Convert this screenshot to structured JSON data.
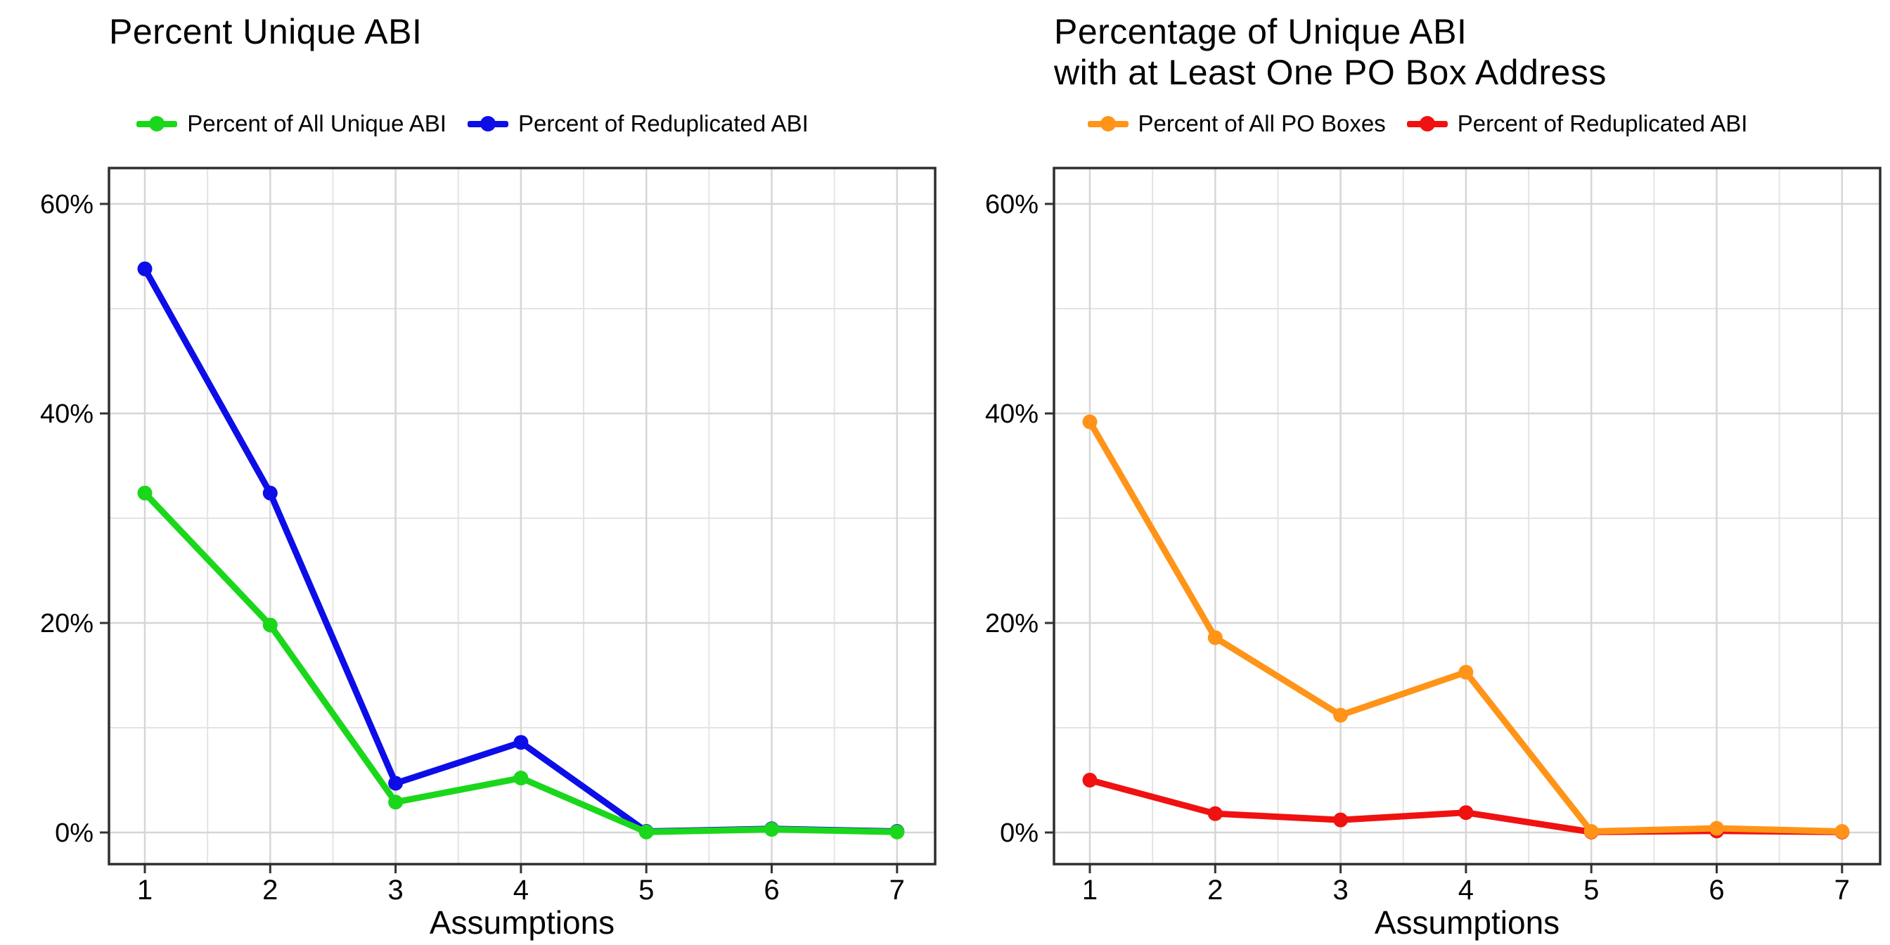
{
  "chart_data": [
    {
      "type": "line",
      "title": "Percent Unique ABI",
      "title_lines": [
        "Percent Unique ABI"
      ],
      "xlabel": "Assumptions",
      "ylabel": "",
      "x": [
        1,
        2,
        3,
        4,
        5,
        6,
        7
      ],
      "x_ticks": [
        "1",
        "2",
        "3",
        "4",
        "5",
        "6",
        "7"
      ],
      "x_minor": [
        1.5,
        2.5,
        3.5,
        4.5,
        5.5,
        6.5
      ],
      "y_ticks": [
        {
          "value": 0,
          "label": "0%"
        },
        {
          "value": 20,
          "label": "20%"
        },
        {
          "value": 40,
          "label": "40%"
        },
        {
          "value": 60,
          "label": "60%"
        }
      ],
      "y_minor": [
        10,
        30,
        50
      ],
      "ylim": [
        -3,
        63.5
      ],
      "grid": true,
      "legend_position": "top-center",
      "series": [
        {
          "name": "Percent of All Unique ABI",
          "color": "#1BD71B",
          "values": [
            32.4,
            19.8,
            2.9,
            5.2,
            0.05,
            0.3,
            0.05
          ]
        },
        {
          "name": "Percent of Reduplicated ABI",
          "color": "#0D0DE8",
          "values": [
            53.8,
            32.4,
            4.7,
            8.6,
            0.1,
            0.35,
            0.1
          ]
        }
      ]
    },
    {
      "type": "line",
      "title": "Percentage of Unique ABI with at Least One PO Box Address",
      "title_lines": [
        "Percentage of Unique ABI",
        "with at Least One PO Box Address"
      ],
      "xlabel": "Assumptions",
      "ylabel": "",
      "x": [
        1,
        2,
        3,
        4,
        5,
        6,
        7
      ],
      "x_ticks": [
        "1",
        "2",
        "3",
        "4",
        "5",
        "6",
        "7"
      ],
      "x_minor": [
        1.5,
        2.5,
        3.5,
        4.5,
        5.5,
        6.5
      ],
      "y_ticks": [
        {
          "value": 0,
          "label": "0%"
        },
        {
          "value": 20,
          "label": "20%"
        },
        {
          "value": 40,
          "label": "40%"
        },
        {
          "value": 60,
          "label": "60%"
        }
      ],
      "y_minor": [
        10,
        30,
        50
      ],
      "ylim": [
        -3,
        63.5
      ],
      "grid": true,
      "legend_position": "top-center",
      "series": [
        {
          "name": "Percent of All PO Boxes",
          "color": "#FF9418",
          "values": [
            39.2,
            18.6,
            11.2,
            15.3,
            0.1,
            0.4,
            0.1
          ]
        },
        {
          "name": "Percent of Reduplicated ABI",
          "color": "#F01111",
          "values": [
            5.0,
            1.8,
            1.2,
            1.9,
            0.05,
            0.15,
            0.05
          ]
        }
      ]
    }
  ]
}
